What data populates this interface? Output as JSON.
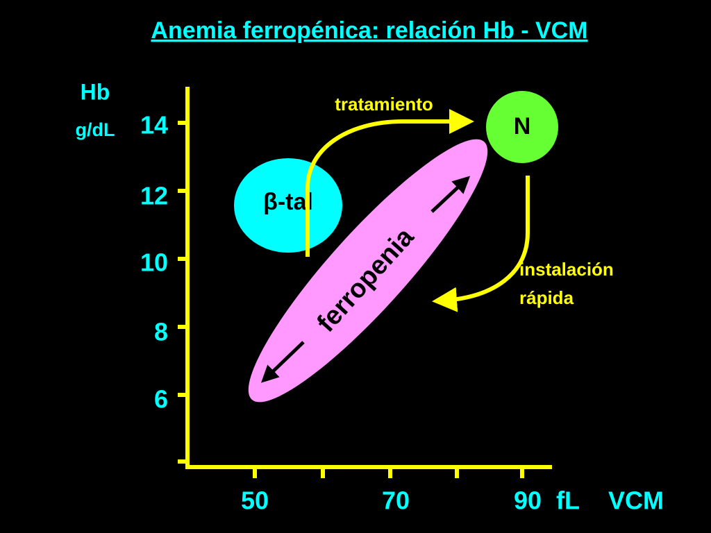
{
  "title": "Anemia ferropénica: relación Hb - VCM",
  "y_axis": {
    "label": "Hb",
    "unit": "g/dL",
    "ticks": [
      "14",
      "12",
      "10",
      "8",
      "6"
    ]
  },
  "x_axis": {
    "ticks": [
      "50",
      "70",
      "90"
    ],
    "unit": "fL",
    "label": "VCM"
  },
  "nodes": [
    {
      "label": "β-tal"
    },
    {
      "label": "ferropenia"
    },
    {
      "label": "N"
    }
  ],
  "arrows": [
    {
      "label": "tratamiento"
    },
    {
      "label_lines": [
        "instalación",
        "rápida"
      ]
    }
  ]
}
